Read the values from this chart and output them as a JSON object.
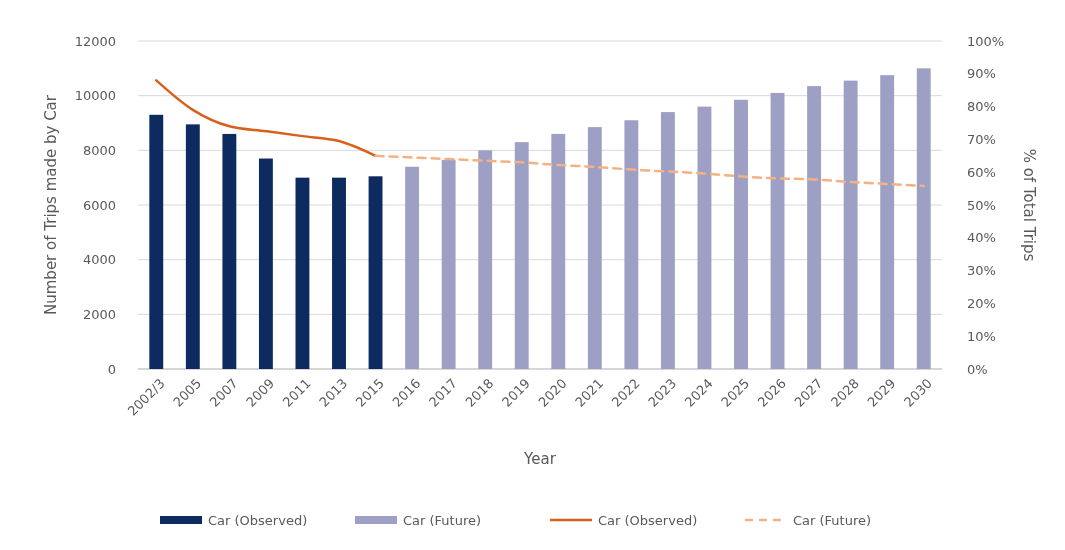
{
  "chart_data": {
    "type": "bar",
    "xlabel": "Year",
    "ylabel": "Number of Trips made by Car",
    "y2label": "% of Total Trips",
    "categories": [
      "2002/3",
      "2005",
      "2007",
      "2009",
      "2011",
      "2013",
      "2015",
      "2016",
      "2017",
      "2018",
      "2019",
      "2020",
      "2021",
      "2022",
      "2023",
      "2024",
      "2025",
      "2026",
      "2027",
      "2028",
      "2029",
      "2030"
    ],
    "series": [
      {
        "name": "Car (Observed)",
        "color": "#0d2b5e",
        "values": [
          9300,
          8950,
          8600,
          7700,
          7000,
          7000,
          7050,
          null,
          null,
          null,
          null,
          null,
          null,
          null,
          null,
          null,
          null,
          null,
          null,
          null,
          null,
          null
        ]
      },
      {
        "name": "Car (Future)",
        "color": "#9da0c4",
        "values": [
          null,
          null,
          null,
          null,
          null,
          null,
          null,
          7400,
          7650,
          8000,
          8300,
          8600,
          8850,
          9100,
          9400,
          9600,
          9850,
          10100,
          10350,
          10550,
          10750,
          11000
        ]
      },
      {
        "name": "Car (Observed)",
        "type": "line",
        "axis": "y2",
        "color": "#d9601c",
        "line_style": "solid",
        "values": [
          88,
          79,
          74,
          72.5,
          71,
          69.5,
          65,
          null,
          null,
          null,
          null,
          null,
          null,
          null,
          null,
          null,
          null,
          null,
          null,
          null,
          null,
          null
        ]
      },
      {
        "name": "Car (Future)",
        "type": "line",
        "axis": "y2",
        "color": "#f4b183",
        "line_style": "dashed",
        "values": [
          null,
          null,
          null,
          null,
          null,
          null,
          65,
          64.5,
          64,
          63.5,
          63,
          62.2,
          61.6,
          60.8,
          60.2,
          59.6,
          58.7,
          58.1,
          57.8,
          57,
          56.4,
          55.8
        ]
      }
    ],
    "ylim": [
      0,
      12000
    ],
    "yticks": [
      0,
      2000,
      4000,
      6000,
      8000,
      10000,
      12000
    ],
    "y2lim": [
      0,
      100
    ],
    "y2ticks": [
      {
        "value": 0,
        "label": "0%"
      },
      {
        "value": 10,
        "label": "10%"
      },
      {
        "value": 20,
        "label": "20%"
      },
      {
        "value": 30,
        "label": "30%"
      },
      {
        "value": 40,
        "label": "40%"
      },
      {
        "value": 50,
        "label": "50%"
      },
      {
        "value": 60,
        "label": "60%"
      },
      {
        "value": 70,
        "label": "70%"
      },
      {
        "value": 80,
        "label": "80%"
      },
      {
        "value": 90,
        "label": "90%"
      },
      {
        "value": 100,
        "label": "100%"
      }
    ],
    "grid": "y",
    "legend": "bottom"
  }
}
